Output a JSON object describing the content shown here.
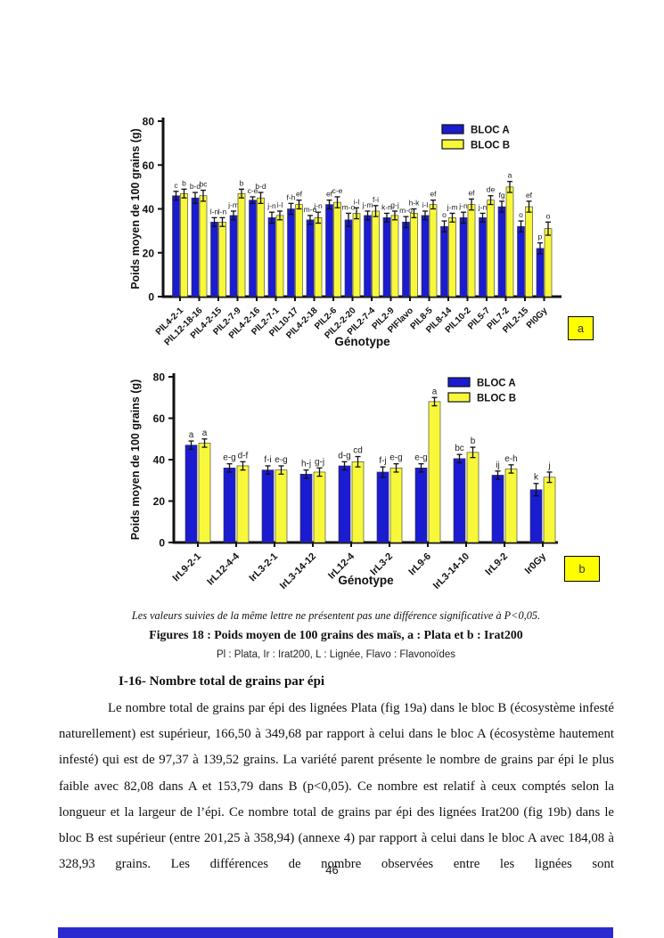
{
  "figure_caption": {
    "note": "Les valeurs suivies de la même lettre ne présentent pas une différence significative à P<0,05.",
    "title": "Figures 18 : Poids moyen de 100 grains des maïs, a : Plata et b : Irat200",
    "abbreviations": "Pl : Plata, Ir : Irat200, L : Lignée, Flavo : Flavonoïdes"
  },
  "section": {
    "heading": "I-16- Nombre total de grains par épi",
    "paragraph": "Le nombre total de grains par épi des lignées Plata (fig 19a) dans le bloc B (écosystème infesté naturellement) est supérieur, 166,50 à 349,68 par rapport  à celui dans le bloc A (écosystème hautement infesté) qui est de 97,37 à 139,52 grains. La variété parent présente le nombre de grains par épi le plus faible avec 82,08 dans A et 153,79 dans B (p<0,05). Ce nombre est relatif à ceux comptés selon la longueur et la largeur de l’épi. Ce nombre total de grains par épi des lignées Irat200 (fig 19b) dans le bloc B est supérieur (entre 201,25  à 358,94) (annexe 4) par rapport  à celui dans le bloc A avec 184,08 à 328,93 grains. Les différences de nombre observées entre les lignées sont"
  },
  "page_number": "46",
  "colors": {
    "bloc_a_blue": "#1b1bd1",
    "bloc_b_yellow": "#f8f83a",
    "panel_label_bg": "#ffff00",
    "bottom_bar_blue": "#2a2ad0"
  },
  "chart_data": [
    {
      "type": "bar",
      "panel_label": "a",
      "title": "",
      "xlabel": "Génotype",
      "ylabel": "Poids moyen de 100 grains (g)",
      "ylim": [
        0,
        80
      ],
      "yticks": [
        0,
        20,
        40,
        60,
        80
      ],
      "grid": false,
      "legend_position": "top-right",
      "error_bars": true,
      "significance_note": "letters above bars mark Tukey groups",
      "categories": [
        "PlL4-2-1",
        "PlL12-18-16",
        "PlL4-2-15",
        "PlL2-7-9",
        "PlL4-2-16",
        "PlL2-7-1",
        "PlL10-17",
        "PlL4-2-18",
        "PlL2-6",
        "PlL2-2-20",
        "PlL2-7-4",
        "PlL2-9",
        "PlFlavo",
        "PlL8-5",
        "PlL8-14",
        "PlL10-2",
        "PlL5-7",
        "PlL7-2",
        "PlL2-15",
        "Pl0Gy"
      ],
      "series": [
        {
          "name": "BLOC A",
          "color": "#1b1bd1",
          "values": [
            46,
            45,
            34,
            37,
            44,
            36,
            40,
            35,
            42,
            35,
            37,
            36,
            34,
            37,
            32,
            36,
            36,
            41,
            32,
            22
          ],
          "errors": [
            2,
            2.5,
            2,
            2,
            1.5,
            2.5,
            2.5,
            2,
            2,
            3,
            2,
            2,
            2.5,
            2,
            2.5,
            2.5,
            2,
            2.5,
            2.5,
            2.5
          ],
          "letters": [
            "c",
            "b-d",
            "l-n",
            "j-m",
            "c-e",
            "j-n",
            "f-h",
            "m-o",
            "ef",
            "m-o",
            "j-m",
            "k-n",
            "m-o",
            "i-l",
            "o",
            "j-n",
            "j-n",
            "fg",
            "o",
            "p"
          ]
        },
        {
          "name": "BLOC B",
          "color": "#f8f83a",
          "values": [
            47,
            46,
            34,
            47,
            45,
            37,
            42,
            36,
            43,
            38,
            39,
            37,
            38,
            42,
            36,
            42,
            44,
            50,
            41,
            31
          ],
          "errors": [
            2,
            2.5,
            2,
            2,
            2.5,
            2,
            2,
            2.5,
            2.5,
            2.5,
            2.5,
            2,
            2,
            2,
            2,
            2.5,
            2,
            2.5,
            2.5,
            3
          ],
          "letters": [
            "b",
            "bc",
            "l-n",
            "b",
            "b-d",
            "i-l",
            "ef",
            "j-n",
            "c-e",
            "i-l",
            "f-i",
            "g-j",
            "h-k",
            "ef",
            "j-m",
            "ef",
            "de",
            "a",
            "ef",
            "o"
          ]
        }
      ]
    },
    {
      "type": "bar",
      "panel_label": "b",
      "title": "",
      "xlabel": "Génotype",
      "ylabel": "Poids moyen de 100 grains (g)",
      "ylim": [
        0,
        80
      ],
      "yticks": [
        0,
        20,
        40,
        60,
        80
      ],
      "grid": false,
      "legend_position": "top-right",
      "error_bars": true,
      "significance_note": "letters above bars mark Tukey groups",
      "categories": [
        "IrL9-2-1",
        "IrL12-4-4",
        "IrL3-2-1",
        "IrL3-14-12",
        "IrL12-4",
        "IrL3-2",
        "IrL9-6",
        "IrL3-14-10",
        "IrL9-2",
        "Ir0Gy"
      ],
      "series": [
        {
          "name": "BLOC A",
          "color": "#1b1bd1",
          "values": [
            47,
            36,
            35,
            33,
            37,
            34,
            36,
            40.5,
            32.5,
            25.5
          ],
          "errors": [
            2,
            2,
            2,
            2,
            2,
            2.5,
            2,
            2,
            2,
            3
          ],
          "letters": [
            "a",
            "e-g",
            "f-i",
            "h-j",
            "d-g",
            "f-j",
            "e-g",
            "bc",
            "ij",
            "k"
          ]
        },
        {
          "name": "BLOC B",
          "color": "#f8f83a",
          "values": [
            48,
            37,
            35,
            34,
            39,
            36,
            68,
            43.5,
            35.5,
            31.5
          ],
          "errors": [
            2,
            2,
            2,
            2,
            2.5,
            2,
            2,
            2.5,
            2,
            2.5
          ],
          "letters": [
            "a",
            "d-f",
            "e-g",
            "g-j",
            "cd",
            "e-g",
            "a",
            "b",
            "e-h",
            "j"
          ]
        }
      ]
    }
  ]
}
